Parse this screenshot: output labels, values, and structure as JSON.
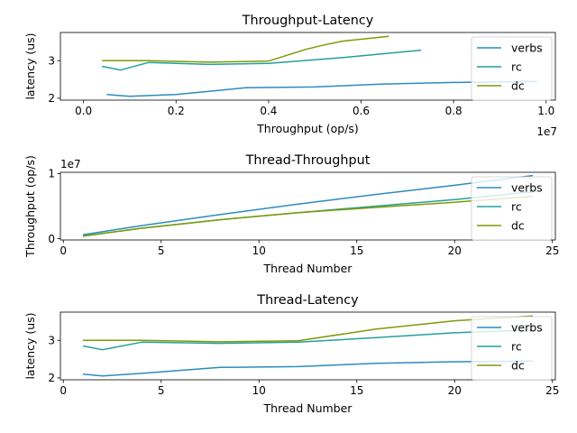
{
  "colors": {
    "verbs": "#2b8cbe",
    "rc": "#24a09a",
    "dc": "#7f9a06"
  },
  "chart_data": [
    {
      "type": "line",
      "title": "Throughput-Latency",
      "xlabel": "Throughput (op/s)",
      "ylabel": "latency (us)",
      "x_offset_label": "1e7",
      "xlim": [
        -0.05,
        1.02
      ],
      "ylim": [
        1.95,
        3.75
      ],
      "xticks": [
        0,
        0.2,
        0.4,
        0.6,
        0.8,
        1.0
      ],
      "xtick_labels": [
        "0.0",
        "0.2",
        "0.4",
        "0.6",
        "0.8",
        "1.0"
      ],
      "yticks": [
        2,
        3
      ],
      "ytick_labels": [
        "2",
        "3"
      ],
      "legend": "right",
      "series": [
        {
          "name": "verbs",
          "color": "#2b8cbe",
          "x": [
            0.05,
            0.1,
            0.2,
            0.35,
            0.5,
            0.65,
            0.8,
            0.98
          ],
          "y": [
            2.1,
            2.05,
            2.1,
            2.28,
            2.3,
            2.38,
            2.42,
            2.45
          ]
        },
        {
          "name": "rc",
          "color": "#24a09a",
          "x": [
            0.04,
            0.08,
            0.14,
            0.27,
            0.4,
            0.55,
            0.73
          ],
          "y": [
            2.85,
            2.75,
            2.95,
            2.9,
            2.93,
            3.07,
            3.28
          ]
        },
        {
          "name": "dc",
          "color": "#7f9a06",
          "x": [
            0.04,
            0.14,
            0.27,
            0.4,
            0.48,
            0.52,
            0.56,
            0.66
          ],
          "y": [
            3.0,
            3.0,
            2.96,
            2.99,
            3.3,
            3.42,
            3.52,
            3.65
          ]
        }
      ]
    },
    {
      "type": "line",
      "title": "Thread-Throughput",
      "xlabel": "Thread Number",
      "ylabel": "Throughput (op/s)",
      "y_offset_label": "1e7",
      "xlim": [
        -0.15,
        25.15
      ],
      "ylim": [
        -0.02,
        1.02
      ],
      "xticks": [
        0,
        5,
        10,
        15,
        20,
        25
      ],
      "xtick_labels": [
        "0",
        "5",
        "10",
        "15",
        "20",
        "25"
      ],
      "yticks": [
        0,
        1
      ],
      "ytick_labels": [
        "0",
        "1"
      ],
      "legend": "right",
      "series": [
        {
          "name": "verbs",
          "color": "#2b8cbe",
          "x": [
            1,
            4,
            8,
            12,
            16,
            20,
            24
          ],
          "y": [
            0.06,
            0.2,
            0.37,
            0.53,
            0.68,
            0.82,
            0.97
          ]
        },
        {
          "name": "rc",
          "color": "#24a09a",
          "x": [
            1,
            4,
            8,
            12,
            16,
            20,
            24
          ],
          "y": [
            0.04,
            0.16,
            0.29,
            0.4,
            0.5,
            0.6,
            0.72
          ]
        },
        {
          "name": "dc",
          "color": "#7f9a06",
          "x": [
            1,
            4,
            8,
            12,
            16,
            20,
            24
          ],
          "y": [
            0.04,
            0.16,
            0.29,
            0.4,
            0.48,
            0.56,
            0.65
          ]
        }
      ]
    },
    {
      "type": "line",
      "title": "Thread-Latency",
      "xlabel": "Thread Number",
      "ylabel": "latency (us)",
      "xlim": [
        -0.15,
        25.15
      ],
      "ylim": [
        1.95,
        3.75
      ],
      "xticks": [
        0,
        5,
        10,
        15,
        20,
        25
      ],
      "xtick_labels": [
        "0",
        "5",
        "10",
        "15",
        "20",
        "25"
      ],
      "yticks": [
        2,
        3
      ],
      "ytick_labels": [
        "2",
        "3"
      ],
      "legend": "right",
      "series": [
        {
          "name": "verbs",
          "color": "#2b8cbe",
          "x": [
            1,
            2,
            4,
            8,
            12,
            16,
            20,
            24
          ],
          "y": [
            2.1,
            2.05,
            2.12,
            2.28,
            2.3,
            2.39,
            2.43,
            2.45
          ]
        },
        {
          "name": "rc",
          "color": "#24a09a",
          "x": [
            1,
            2,
            4,
            8,
            12,
            16,
            20,
            24
          ],
          "y": [
            2.85,
            2.75,
            2.95,
            2.92,
            2.95,
            3.07,
            3.2,
            3.28
          ]
        },
        {
          "name": "dc",
          "color": "#7f9a06",
          "x": [
            1,
            2,
            4,
            8,
            12,
            16,
            20,
            24
          ],
          "y": [
            3.0,
            3.0,
            3.0,
            2.96,
            2.99,
            3.3,
            3.52,
            3.65
          ]
        }
      ]
    }
  ]
}
